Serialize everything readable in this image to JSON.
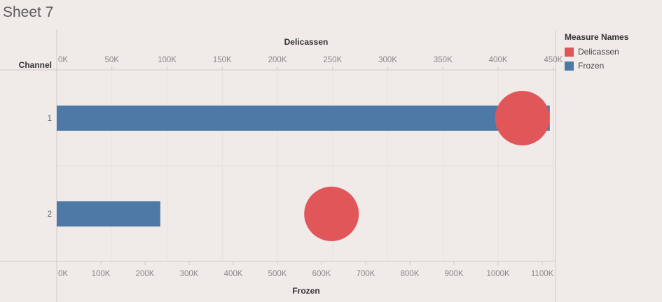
{
  "title": "Sheet 7",
  "legend": {
    "title": "Measure Names",
    "items": [
      {
        "label": "Delicassen",
        "color": "#e15759"
      },
      {
        "label": "Frozen",
        "color": "#4e79a7"
      }
    ]
  },
  "chart_data": {
    "type": "bar",
    "row_header": "Channel",
    "categories": [
      "1",
      "2"
    ],
    "top_axis": {
      "label": "Delicassen",
      "ticks": [
        "0K",
        "50K",
        "100K",
        "150K",
        "200K",
        "250K",
        "300K",
        "350K",
        "400K",
        "450K"
      ],
      "tick_values": [
        0,
        50000,
        100000,
        150000,
        200000,
        250000,
        300000,
        350000,
        400000,
        450000
      ],
      "range": [
        0,
        452000
      ]
    },
    "bottom_axis": {
      "label": "Frozen",
      "ticks": [
        "0K",
        "100K",
        "200K",
        "300K",
        "400K",
        "500K",
        "600K",
        "700K",
        "800K",
        "900K",
        "1000K",
        "1100K"
      ],
      "tick_values": [
        0,
        100000,
        200000,
        300000,
        400000,
        500000,
        600000,
        700000,
        800000,
        900000,
        1000000,
        1100000
      ],
      "range": [
        0,
        1130000
      ]
    },
    "series": [
      {
        "name": "Delicassen",
        "mark": "circle",
        "color": "#e15759",
        "values": [
          421955,
          248988
        ]
      },
      {
        "name": "Frozen",
        "mark": "bar",
        "color": "#4e79a7",
        "values": [
          1116979,
          234671
        ]
      }
    ],
    "grid": true
  }
}
